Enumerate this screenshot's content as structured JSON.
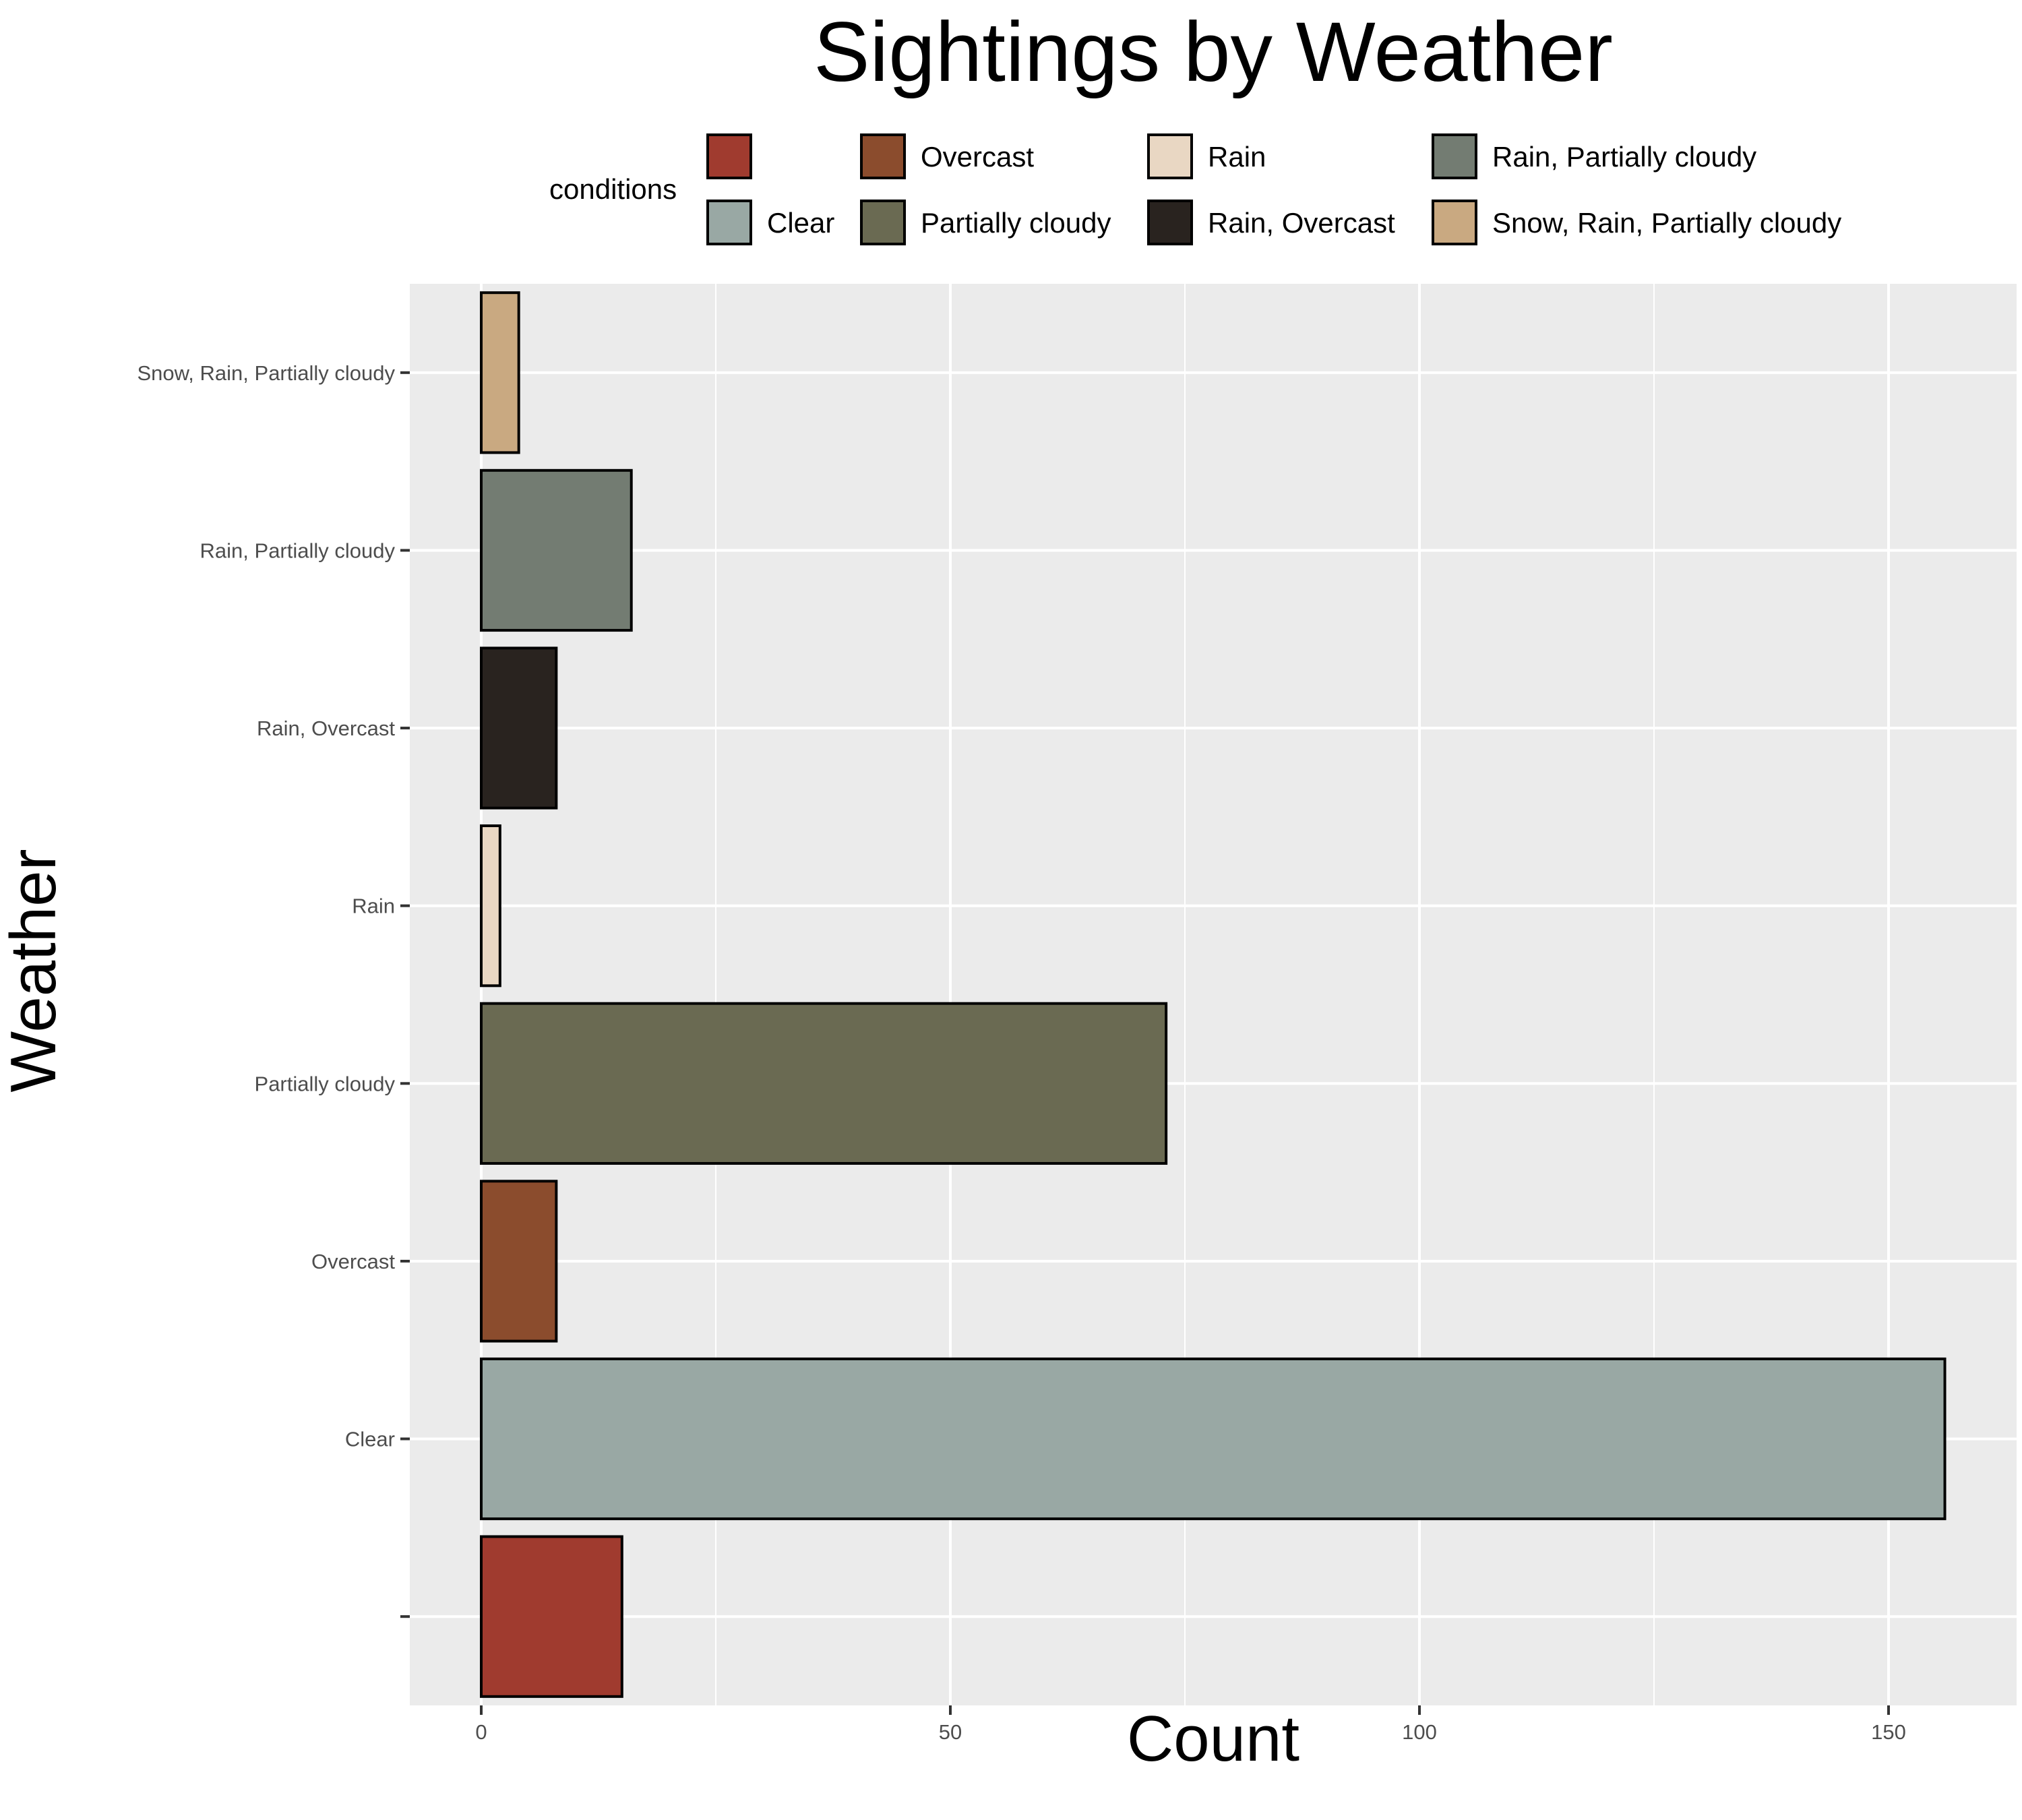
{
  "chart_data": {
    "type": "bar",
    "orientation": "horizontal",
    "title": "Sightings by Weather",
    "xlabel": "Count",
    "ylabel": "Weather",
    "categories": [
      "",
      "Clear",
      "Overcast",
      "Partially cloudy",
      "Rain",
      "Rain, Overcast",
      "Rain, Partially cloudy",
      "Snow, Rain, Partially cloudy"
    ],
    "values": [
      15,
      156,
      8,
      73,
      2,
      8,
      16,
      4
    ],
    "colors": [
      "#A03B2F",
      "#99A8A4",
      "#8B4C2D",
      "#6A6A52",
      "#E9D7C3",
      "#29231F",
      "#737C72",
      "#C9A981"
    ],
    "xlim": [
      0,
      160
    ],
    "x_ticks": [
      0,
      50,
      100,
      150
    ],
    "grid": true,
    "legend": {
      "title": "conditions",
      "position": "top",
      "entries": [
        {
          "label": "",
          "color": "#A03B2F"
        },
        {
          "label": "Clear",
          "color": "#99A8A4"
        },
        {
          "label": "Overcast",
          "color": "#8B4C2D"
        },
        {
          "label": "Partially cloudy",
          "color": "#6A6A52"
        },
        {
          "label": "Rain",
          "color": "#E9D7C3"
        },
        {
          "label": "Rain, Overcast",
          "color": "#29231F"
        },
        {
          "label": "Rain, Partially cloudy",
          "color": "#737C72"
        },
        {
          "label": "Snow, Rain, Partially cloudy",
          "color": "#C9A981"
        }
      ]
    },
    "panel_background": "#EBEBEB",
    "gridline_color": "#FFFFFF"
  }
}
